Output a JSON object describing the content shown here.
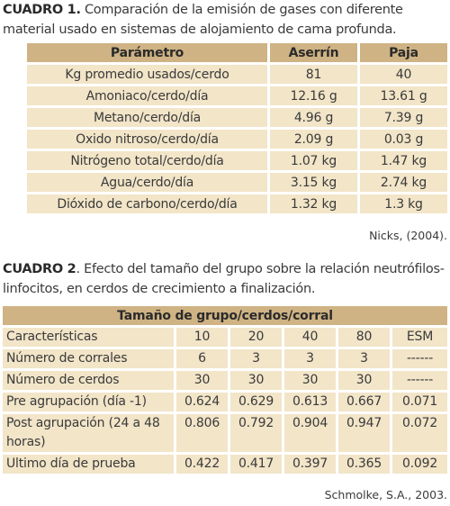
{
  "table1": {
    "caption_label": "CUADRO 1.",
    "caption": "Comparación de la emisión de gases con diferente material usado en sistemas de alojamiento de cama profunda.",
    "header": [
      "Parámetro",
      "Aserrín",
      "Paja"
    ],
    "rows": [
      [
        "Kg promedio usados/cerdo",
        "81",
        "40"
      ],
      [
        "Amoniaco/cerdo/día",
        "12.16 g",
        "13.61 g"
      ],
      [
        "Metano/cerdo/día",
        "4.96 g",
        "7.39 g"
      ],
      [
        "Oxido nitroso/cerdo/día",
        "2.09 g",
        "0.03 g"
      ],
      [
        "Nitrógeno total/cerdo/día",
        "1.07 kg",
        "1.47 kg"
      ],
      [
        "Agua/cerdo/día",
        "3.15 kg",
        "2.74 kg"
      ],
      [
        "Dióxido de carbono/cerdo/día",
        "1.32 kg",
        "1.3 kg"
      ]
    ],
    "source": "Nicks, (2004)."
  },
  "table2": {
    "caption_label": "CUADRO 2",
    "caption": ". Efecto del tamaño del grupo sobre la relación neutrófilos-linfocitos, en cerdos de crecimiento a finalización.",
    "header": "Tamaño de grupo/cerdos/corral",
    "rows": [
      [
        "Características",
        "10",
        "20",
        "40",
        "80",
        "ESM"
      ],
      [
        "Número de corrales",
        "6",
        "3",
        "3",
        "3",
        "------"
      ],
      [
        "Número de cerdos",
        "30",
        "30",
        "30",
        "30",
        "------"
      ],
      [
        "Pre agrupación (día -1)",
        "0.624",
        "0.629",
        "0.613",
        "0.667",
        "0.071"
      ],
      [
        "Post agrupación (24 a 48 horas)",
        "0.806",
        "0.792",
        "0.904",
        "0.947",
        "0.072"
      ],
      [
        "Ultimo día de prueba",
        "0.422",
        "0.417",
        "0.397",
        "0.365",
        "0.092"
      ]
    ],
    "source": "Schmolke, S.A., 2003."
  }
}
